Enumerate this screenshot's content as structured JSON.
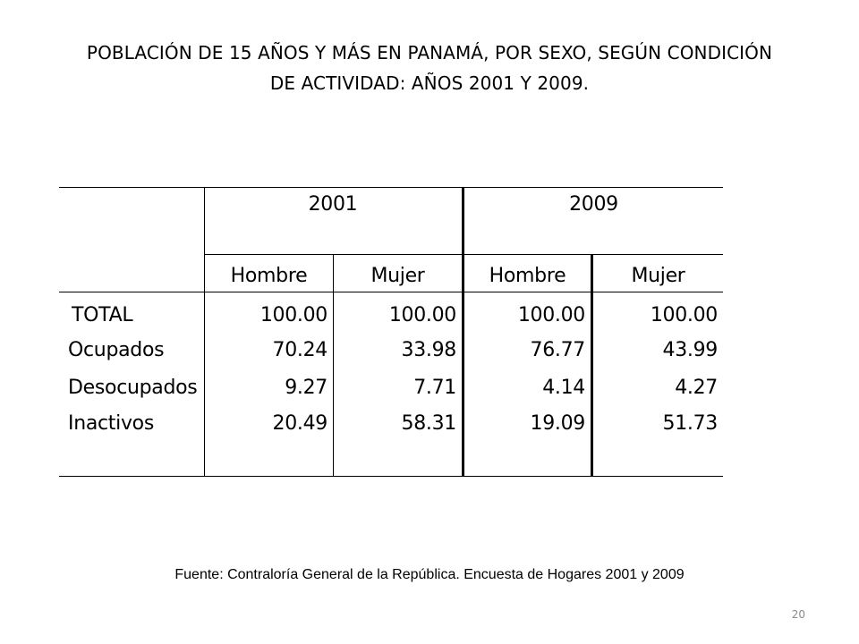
{
  "title": {
    "line1": "POBLACIÓN DE 15 AÑOS Y MÁS EN PANAMÁ, POR SEXO, SEGÚN CONDICIÓN",
    "line2": "DE ACTIVIDAD: AÑOS 2001 Y 2009."
  },
  "table": {
    "years": [
      "2001",
      "2009"
    ],
    "sex_headers": [
      "Hombre",
      "Mujer",
      "Hombre",
      "Mujer"
    ],
    "rows": [
      {
        "label": "TOTAL",
        "values": [
          "100.00",
          "100.00",
          "100.00",
          "100.00"
        ]
      },
      {
        "label": "Ocupados",
        "values": [
          "70.24",
          "33.98",
          "76.77",
          "43.99"
        ]
      },
      {
        "label": "Desocupados",
        "values": [
          "9.27",
          "7.71",
          "4.14",
          "4.27"
        ]
      },
      {
        "label": "Inactivos",
        "values": [
          "20.49",
          "58.31",
          "19.09",
          "51.73"
        ]
      }
    ]
  },
  "footnote": "Fuente: Contraloría General de la República. Encuesta de Hogares 2001 y 2009",
  "page_number": "20"
}
